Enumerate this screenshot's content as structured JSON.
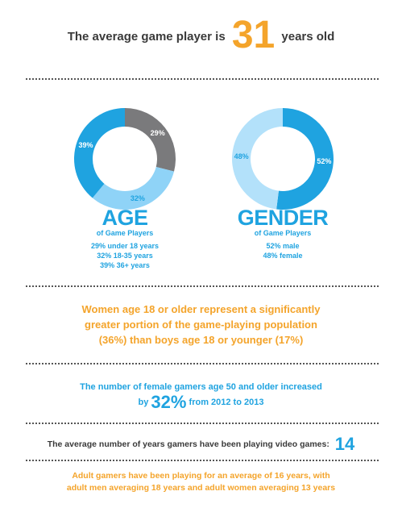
{
  "headline": {
    "prefix": "The average game player is",
    "number": "31",
    "suffix": "years old"
  },
  "age": {
    "title": "AGE",
    "subtitle": "of Game Players",
    "items": [
      "29% under 18 years",
      "32% 18-35 years",
      "39% 36+ years"
    ]
  },
  "gender": {
    "title": "GENDER",
    "subtitle": "of Game Players",
    "items": [
      "52% male",
      "48% female"
    ]
  },
  "chart_data": [
    {
      "type": "pie",
      "donut": true,
      "title": "AGE",
      "categories": [
        "under 18 years",
        "18-35 years",
        "36+ years"
      ],
      "values": [
        29,
        32,
        39
      ],
      "labels": [
        "29%",
        "32%",
        "39%"
      ],
      "colors": [
        "#7a7a7c",
        "#8fd3f7",
        "#1fa3e0"
      ]
    },
    {
      "type": "pie",
      "donut": true,
      "title": "GENDER",
      "categories": [
        "male",
        "female"
      ],
      "values": [
        52,
        48
      ],
      "labels": [
        "52%",
        "48%"
      ],
      "colors": [
        "#1fa3e0",
        "#b3e1fa"
      ]
    }
  ],
  "women_fact": {
    "line1": "Women age 18 or older represent a significantly",
    "line2": "greater portion of the game-playing population",
    "line3": "(36%) than boys age 18 or younger (17%)"
  },
  "female_fact": {
    "line1": "The number of female gamers age 50 and older increased",
    "by": "by",
    "number": "32%",
    "rest": "from 2012 to 2013"
  },
  "years_fact": {
    "text": "The average number of years gamers have been playing video games:",
    "number": "14"
  },
  "adult_fact": {
    "line1": "Adult gamers have been playing for an average of 16 years, with",
    "line2": "adult men averaging 18 years and adult women averaging 13 years"
  },
  "colors": {
    "blue": "#1fa3e0",
    "light_blue": "#8fd3f7",
    "pale_blue": "#b3e1fa",
    "gray": "#7a7a7c",
    "orange": "#f4a42b",
    "dark_text": "#3a3a3a"
  }
}
